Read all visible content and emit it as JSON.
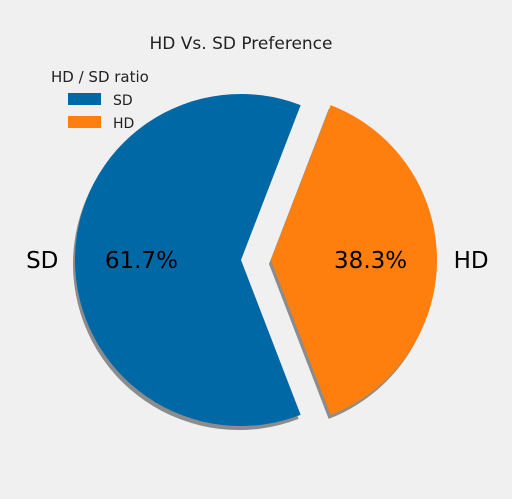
{
  "chart_data": {
    "type": "pie",
    "title": "HD Vs. SD Preference",
    "legend_title": "HD / SD ratio",
    "legend_position": "top-left",
    "slices": [
      {
        "label": "SD",
        "value": 61.7,
        "pct_label": "61.7%",
        "color": "#0068a5",
        "explode": false
      },
      {
        "label": "HD",
        "value": 38.3,
        "pct_label": "38.3%",
        "color": "#ff7f0e",
        "explode": true
      }
    ],
    "shadow": true,
    "start_angle_deg": 0
  }
}
